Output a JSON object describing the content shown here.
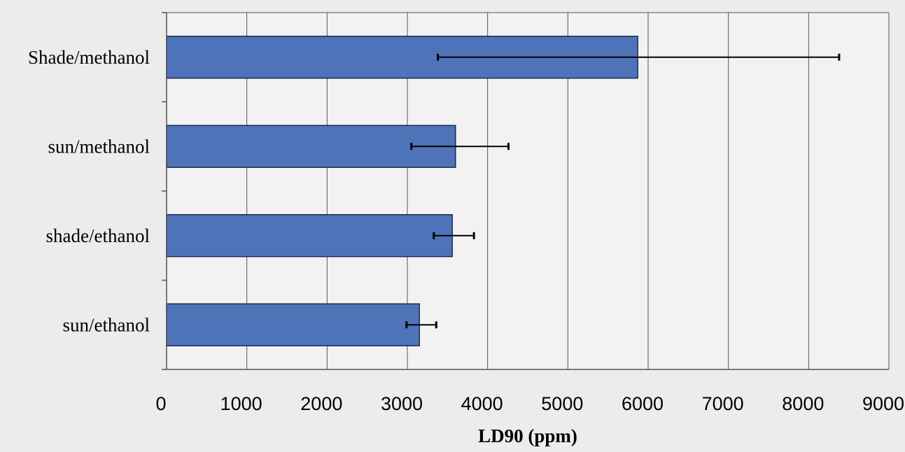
{
  "chart_data": {
    "type": "bar",
    "orientation": "horizontal",
    "categories": [
      "Shade/methanol",
      "sun/methanol",
      "shade/ethanol",
      "sun/ethanol"
    ],
    "values": [
      5870,
      3600,
      3560,
      3150
    ],
    "error_low": [
      3380,
      3050,
      3330,
      2990
    ],
    "error_high": [
      8380,
      4260,
      3830,
      3360
    ],
    "xlabel": "LD90 (ppm)",
    "ylabel": "",
    "title": "",
    "xlim": [
      0,
      9000
    ],
    "xticks": [
      "0",
      "1000",
      "2000",
      "3000",
      "4000",
      "5000",
      "6000",
      "7000",
      "8000",
      "9000"
    ],
    "grid": "vertical",
    "legend": "none",
    "colors": {
      "bar": "#4f73b8",
      "bar_edge": "#1a2a55",
      "grid": "#555555",
      "background": "#ececec",
      "plot_area": "#f2f2f2"
    }
  }
}
